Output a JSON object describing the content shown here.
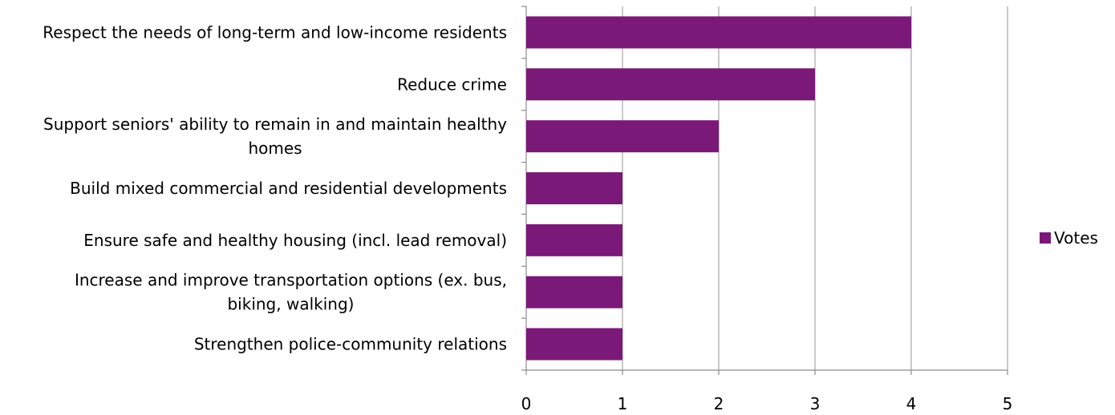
{
  "chart_data": {
    "type": "bar",
    "orientation": "horizontal",
    "categories": [
      [
        "Respect the needs of long-term and low-income residents"
      ],
      [
        "Reduce crime"
      ],
      [
        "Support seniors' ability to remain in and maintain healthy",
        "homes"
      ],
      [
        "Build mixed commercial and residential developments"
      ],
      [
        "Ensure safe and healthy housing (incl. lead removal)"
      ],
      [
        "Increase and improve transportation options (ex. bus,",
        "biking, walking)"
      ],
      [
        "Strengthen police-community relations"
      ]
    ],
    "series": [
      {
        "name": "Votes",
        "color": "#7b1979",
        "values": [
          4,
          3,
          2,
          1,
          1,
          1,
          1
        ]
      }
    ],
    "xlim": [
      0,
      5
    ],
    "xticks": [
      "0",
      "1",
      "2",
      "3",
      "4",
      "5"
    ],
    "grid": true,
    "legend_position": "right"
  }
}
